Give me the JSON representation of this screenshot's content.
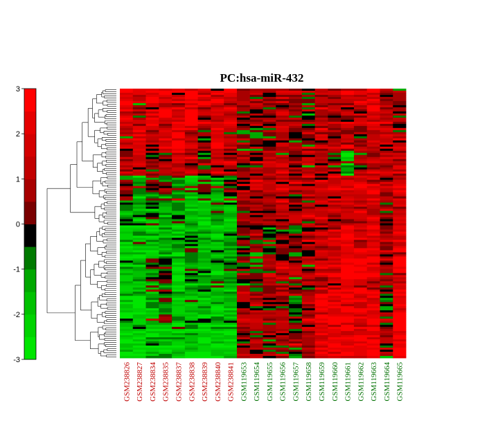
{
  "chart_data": {
    "type": "heatmap",
    "title": "PC:hsa-miR-432",
    "colorbar": {
      "ticks": [
        "3",
        "2",
        "1",
        "0",
        "-1",
        "-2",
        "-3"
      ],
      "tick_values": [
        3,
        2,
        1,
        0,
        -1,
        -2,
        -3
      ],
      "range": [
        -3,
        3
      ],
      "colormap": [
        "#00e600",
        "#00d400",
        "#00c200",
        "#00a800",
        "#007a00",
        "#000000",
        "#7a0000",
        "#a80000",
        "#c20000",
        "#d40000",
        "#e60000",
        "#ff0000"
      ]
    },
    "samples": [
      {
        "id": "GSM238826",
        "group": "red"
      },
      {
        "id": "GSM238827",
        "group": "red"
      },
      {
        "id": "GSM238834",
        "group": "red"
      },
      {
        "id": "GSM238835",
        "group": "red"
      },
      {
        "id": "GSM238837",
        "group": "red"
      },
      {
        "id": "GSM238838",
        "group": "red"
      },
      {
        "id": "GSM238839",
        "group": "red"
      },
      {
        "id": "GSM238840",
        "group": "red"
      },
      {
        "id": "GSM238841",
        "group": "red"
      },
      {
        "id": "GSM119653",
        "group": "green"
      },
      {
        "id": "GSM119654",
        "group": "green"
      },
      {
        "id": "GSM119655",
        "group": "green"
      },
      {
        "id": "GSM119656",
        "group": "green"
      },
      {
        "id": "GSM119657",
        "group": "green"
      },
      {
        "id": "GSM119658",
        "group": "green"
      },
      {
        "id": "GSM119659",
        "group": "green"
      },
      {
        "id": "GSM119660",
        "group": "green"
      },
      {
        "id": "GSM119661",
        "group": "green"
      },
      {
        "id": "GSM119662",
        "group": "green"
      },
      {
        "id": "GSM119663",
        "group": "green"
      },
      {
        "id": "GSM119664",
        "group": "green"
      },
      {
        "id": "GSM119665",
        "group": "green"
      }
    ],
    "group_colors": {
      "red": "#c00000",
      "green": "#007000"
    },
    "row_count": 130,
    "row_blocks": [
      {
        "rows": 18,
        "values": [
          1.9,
          0.8,
          2.3,
          2.0,
          1.8,
          2.4,
          1.5,
          1.6,
          1.8,
          0.3,
          0.6,
          0.2,
          1.0,
          0.4,
          0.0,
          1.0,
          0.8,
          1.5,
          1.2,
          1.9,
          0.6,
          0.4
        ]
      },
      {
        "rows": 12,
        "values": [
          1.3,
          1.9,
          1.1,
          1.8,
          2.6,
          1.4,
          0.6,
          2.0,
          1.7,
          0.2,
          -0.3,
          0.6,
          1.0,
          0.2,
          0.8,
          1.1,
          0.5,
          0.9,
          0.7,
          1.4,
          1.3,
          1.0
        ]
      },
      {
        "rows": 12,
        "values": [
          1.0,
          1.4,
          0.5,
          1.1,
          1.2,
          0.9,
          -0.2,
          1.5,
          1.1,
          0.6,
          0.5,
          1.0,
          1.2,
          0.8,
          1.0,
          0.9,
          0.4,
          -1.8,
          0.6,
          1.2,
          1.0,
          1.3
        ]
      },
      {
        "rows": 12,
        "values": [
          0.2,
          -0.8,
          -0.5,
          0.0,
          -0.4,
          -1.6,
          -0.5,
          -1.2,
          0.3,
          1.0,
          1.1,
          1.2,
          1.6,
          0.9,
          1.2,
          1.5,
          1.5,
          1.7,
          2.0,
          2.0,
          1.1,
          1.8
        ]
      },
      {
        "rows": 12,
        "values": [
          -0.8,
          -1.4,
          -1.0,
          -1.2,
          -0.6,
          -1.5,
          -1.8,
          -0.8,
          -1.5,
          0.8,
          0.9,
          1.1,
          1.5,
          1.0,
          1.2,
          1.2,
          1.3,
          1.5,
          1.6,
          1.8,
          0.6,
          1.7
        ]
      },
      {
        "rows": 16,
        "values": [
          -2.1,
          -1.6,
          -2.0,
          -1.3,
          -1.5,
          -1.2,
          -1.4,
          -1.8,
          -1.1,
          0.3,
          0.4,
          0.1,
          0.6,
          -0.2,
          0.9,
          1.6,
          2.0,
          2.6,
          2.1,
          2.2,
          0.9,
          1.9
        ]
      },
      {
        "rows": 16,
        "values": [
          -2.1,
          -1.4,
          -1.0,
          -0.4,
          -2.8,
          -1.3,
          -0.9,
          -1.6,
          -1.3,
          0.1,
          0.0,
          0.4,
          0.9,
          0.4,
          0.7,
          1.7,
          2.1,
          2.7,
          2.3,
          2.0,
          0.6,
          2.2
        ]
      },
      {
        "rows": 16,
        "values": [
          -2.2,
          -2.6,
          -1.5,
          -0.9,
          -2.1,
          -1.8,
          -2.0,
          -2.2,
          -1.6,
          0.7,
          0.9,
          0.7,
          0.6,
          -0.2,
          1.1,
          2.2,
          2.3,
          2.5,
          2.0,
          2.2,
          -0.6,
          2.5
        ]
      },
      {
        "rows": 16,
        "values": [
          -2.4,
          -2.3,
          -2.0,
          -1.8,
          -1.9,
          -2.3,
          -2.1,
          -2.2,
          -2.0,
          0.5,
          0.6,
          0.6,
          0.8,
          0.2,
          0.9,
          2.0,
          2.2,
          2.7,
          2.2,
          2.6,
          0.7,
          2.6
        ]
      }
    ]
  }
}
